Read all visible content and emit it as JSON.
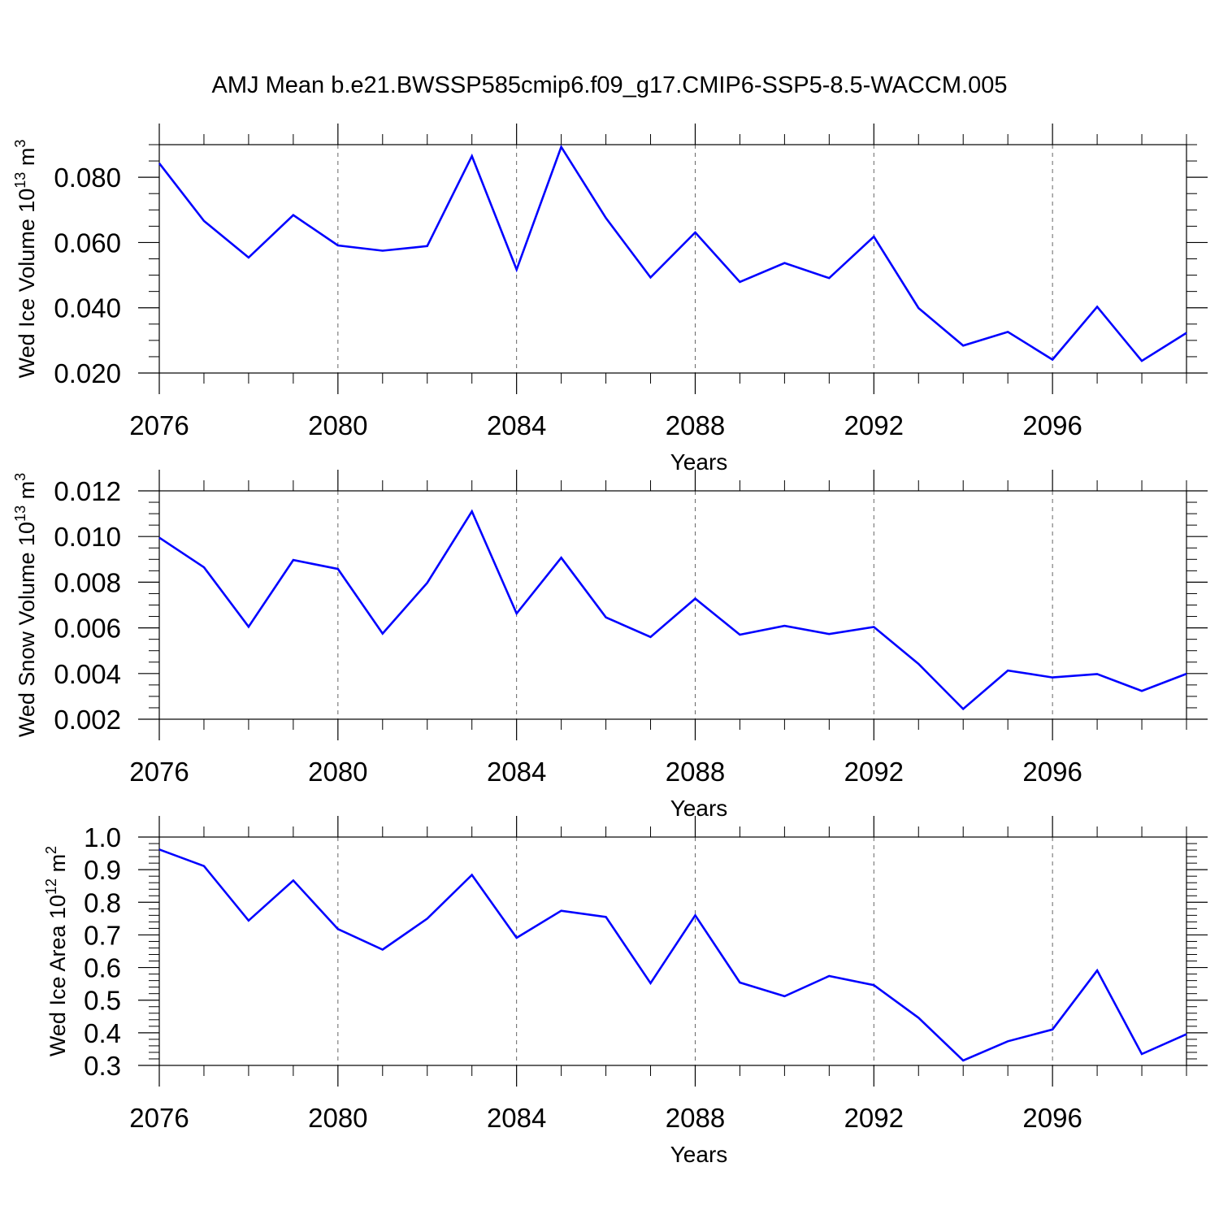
{
  "title": "AMJ Mean b.e21.BWSSP585cmip6.f09_g17.CMIP6-SSP5-8.5-WACCM.005",
  "colors": {
    "line": "#0000ff",
    "axis": "#000000",
    "grid": "#666666"
  },
  "chart_data": [
    {
      "type": "line",
      "name": "ice-volume",
      "ylabel_main": "Wed Ice Volume 10",
      "ylabel_exp": "13",
      "ylabel_unit": " m",
      "ylabel_unit_exp": "3",
      "xlabel": "Years",
      "xlim": [
        2076,
        2099
      ],
      "ylim": [
        0.02,
        0.09
      ],
      "xticks": [
        2076,
        2080,
        2084,
        2088,
        2092,
        2096
      ],
      "xtick_labels": [
        "2076",
        "2080",
        "2084",
        "2088",
        "2092",
        "2096"
      ],
      "yticks": [
        0.02,
        0.04,
        0.06,
        0.08
      ],
      "ytick_labels": [
        "0.020",
        "0.040",
        "0.060",
        "0.080"
      ],
      "y_minor_step": 0.005,
      "x": [
        2076,
        2077,
        2078,
        2079,
        2080,
        2081,
        2082,
        2083,
        2084,
        2085,
        2086,
        2087,
        2088,
        2089,
        2090,
        2091,
        2092,
        2093,
        2094,
        2095,
        2096,
        2097,
        2098,
        2099
      ],
      "values": [
        0.0843,
        0.0666,
        0.0554,
        0.0684,
        0.0591,
        0.0575,
        0.0589,
        0.0865,
        0.0517,
        0.0893,
        0.0675,
        0.0493,
        0.0631,
        0.0479,
        0.0537,
        0.0491,
        0.0618,
        0.0399,
        0.0284,
        0.0326,
        0.0241,
        0.0403,
        0.0237,
        0.0323
      ]
    },
    {
      "type": "line",
      "name": "snow-volume",
      "ylabel_main": "Wed Snow Volume 10",
      "ylabel_exp": "13",
      "ylabel_unit": " m",
      "ylabel_unit_exp": "3",
      "xlabel": "Years",
      "xlim": [
        2076,
        2099
      ],
      "ylim": [
        0.002,
        0.012
      ],
      "xticks": [
        2076,
        2080,
        2084,
        2088,
        2092,
        2096
      ],
      "xtick_labels": [
        "2076",
        "2080",
        "2084",
        "2088",
        "2092",
        "2096"
      ],
      "yticks": [
        0.002,
        0.004,
        0.006,
        0.008,
        0.01,
        0.012
      ],
      "ytick_labels": [
        "0.002",
        "0.004",
        "0.006",
        "0.008",
        "0.010",
        "0.012"
      ],
      "y_minor_step": 0.0005,
      "x": [
        2076,
        2077,
        2078,
        2079,
        2080,
        2081,
        2082,
        2083,
        2084,
        2085,
        2086,
        2087,
        2088,
        2089,
        2090,
        2091,
        2092,
        2093,
        2094,
        2095,
        2096,
        2097,
        2098,
        2099
      ],
      "values": [
        0.00995,
        0.00865,
        0.00605,
        0.00897,
        0.00858,
        0.00575,
        0.00797,
        0.0111,
        0.00663,
        0.00907,
        0.00646,
        0.0056,
        0.00728,
        0.0057,
        0.00609,
        0.00573,
        0.00604,
        0.00442,
        0.00245,
        0.00413,
        0.00383,
        0.00398,
        0.00324,
        0.00399
      ]
    },
    {
      "type": "line",
      "name": "ice-area",
      "ylabel_main": "Wed Ice Area 10",
      "ylabel_exp": "12",
      "ylabel_unit": " m",
      "ylabel_unit_exp": "2",
      "xlabel": "Years",
      "xlim": [
        2076,
        2099
      ],
      "ylim": [
        0.3,
        1.0
      ],
      "xticks": [
        2076,
        2080,
        2084,
        2088,
        2092,
        2096
      ],
      "xtick_labels": [
        "2076",
        "2080",
        "2084",
        "2088",
        "2092",
        "2096"
      ],
      "yticks": [
        0.3,
        0.4,
        0.5,
        0.6,
        0.7,
        0.8,
        0.9,
        1.0
      ],
      "ytick_labels": [
        "0.3",
        "0.4",
        "0.5",
        "0.6",
        "0.7",
        "0.8",
        "0.9",
        "1.0"
      ],
      "y_minor_step": 0.02,
      "x": [
        2076,
        2077,
        2078,
        2079,
        2080,
        2081,
        2082,
        2083,
        2084,
        2085,
        2086,
        2087,
        2088,
        2089,
        2090,
        2091,
        2092,
        2093,
        2094,
        2095,
        2096,
        2097,
        2098,
        2099
      ],
      "values": [
        0.962,
        0.911,
        0.744,
        0.867,
        0.718,
        0.655,
        0.75,
        0.884,
        0.691,
        0.774,
        0.755,
        0.552,
        0.76,
        0.554,
        0.512,
        0.574,
        0.546,
        0.446,
        0.315,
        0.374,
        0.41,
        0.591,
        0.335,
        0.396
      ]
    }
  ]
}
